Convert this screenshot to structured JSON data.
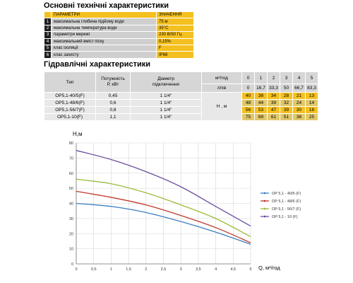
{
  "spec": {
    "title": "Основні технічні характеристики",
    "header": {
      "name": "ПАРАМЕТРИ",
      "value": "ЗНАЧЕННЯ"
    },
    "rows": [
      {
        "n": "1",
        "name": "максимальна глибина підйому води",
        "value": "75 м"
      },
      {
        "n": "2",
        "name": "максимальна температура води",
        "value": "35°C"
      },
      {
        "n": "3",
        "name": "параметри мережі",
        "value": "230 В/50 Гц"
      },
      {
        "n": "4",
        "name": "максимальний вміст піску",
        "value": "0,15%"
      },
      {
        "n": "5",
        "name": "клас ізоляції",
        "value": "F"
      },
      {
        "n": "6",
        "name": "клас захисту",
        "value": "IP68"
      }
    ]
  },
  "hydraulic": {
    "title": "Гідравлічні характеристики",
    "col_type": "Тип",
    "col_power": "Потужність Р, кВт",
    "col_power_l1": "Потужність",
    "col_power_l2": "Р, кВт",
    "col_diam_l1": "Діаметр",
    "col_diam_l2": "підключення",
    "flow_unit_m3": "м³/год",
    "flow_unit_l": "л/хв",
    "flow_m3": [
      "0",
      "1",
      "2",
      "3",
      "4",
      "5"
    ],
    "flow_l": [
      "0",
      "16,7",
      "33,3",
      "50",
      "66,7",
      "83,3"
    ],
    "head_label": "Н , м",
    "models": [
      {
        "type": "OP5,1-40/5(F)",
        "power": "0,45",
        "diam": "1 1/4\"",
        "heads": [
          "40",
          "38",
          "34",
          "28",
          "21",
          "13"
        ]
      },
      {
        "type": "OP5,1-48/6(F)",
        "power": "0,6",
        "diam": "1 1/4\"",
        "heads": [
          "48",
          "44",
          "39",
          "32",
          "24",
          "14"
        ]
      },
      {
        "type": "OP5,1-56/7(F)",
        "power": "0,8",
        "diam": "1 1/4\"",
        "heads": [
          "56",
          "53",
          "47",
          "39",
          "30",
          "18"
        ]
      },
      {
        "type": "OP5,1-10(F)",
        "power": "1,1",
        "diam": "1 1/4\"",
        "heads": [
          "75",
          "69",
          "61",
          "51",
          "38",
          "25"
        ]
      }
    ]
  },
  "chart_data": {
    "type": "line",
    "ylabel": "H,м",
    "xlabel": "Q, м³/год",
    "ylim": [
      0,
      80
    ],
    "xlim": [
      0,
      5
    ],
    "xticks": [
      "0",
      "0,5",
      "1",
      "1,5",
      "2",
      "2,5",
      "3",
      "3,5",
      "4",
      "4,5",
      "5"
    ],
    "yticks": [
      "0",
      "10",
      "20",
      "30",
      "40",
      "50",
      "60",
      "70",
      "80"
    ],
    "x": [
      0,
      1,
      2,
      3,
      4,
      5
    ],
    "grid": true,
    "legend_position": "right",
    "series": [
      {
        "name": "OP 5,1 - 40/5 (F)",
        "color": "#3c7fc0",
        "values": [
          40,
          38,
          34,
          28,
          21,
          13
        ]
      },
      {
        "name": "OP 5,1 - 48/6 (F)",
        "color": "#c0392b",
        "values": [
          48,
          44,
          39,
          32,
          24,
          14
        ]
      },
      {
        "name": "OP 5,1 - 56/7 (F)",
        "color": "#9bbb3b",
        "values": [
          56,
          53,
          47,
          39,
          30,
          18
        ]
      },
      {
        "name": "OP 5,1 - 10 (F)",
        "color": "#6b4ea0",
        "values": [
          75,
          69,
          61,
          51,
          38,
          25
        ]
      }
    ]
  }
}
